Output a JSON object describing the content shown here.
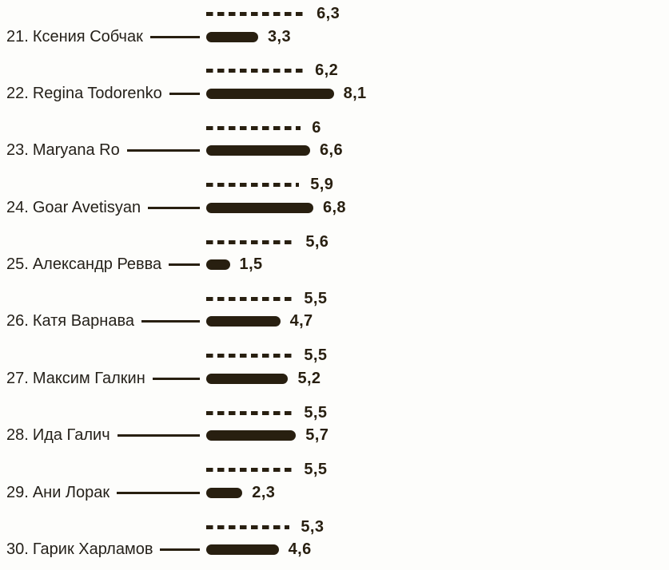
{
  "colors": {
    "ink": "#281f10",
    "name_text": "#25211a",
    "background": "#fdfdfb"
  },
  "chart_data": {
    "type": "bar",
    "orientation": "horizontal",
    "title": "",
    "xlabel": "",
    "ylabel": "",
    "xlim": [
      0,
      8.5
    ],
    "grid": false,
    "legend": "none",
    "decimal_separator": ",",
    "series": [
      {
        "name": "dashed-reference-value",
        "style": "dashed-line"
      },
      {
        "name": "solid-bar-value",
        "style": "solid-rounded-bar"
      }
    ],
    "rows": [
      {
        "rank_label": "21.",
        "name": "Ксения Собчак",
        "dashed_value": 6.3,
        "dashed_label": "6,3",
        "solid_value": 3.3,
        "solid_label": "3,3"
      },
      {
        "rank_label": "22.",
        "name": "Regina Todorenko",
        "dashed_value": 6.2,
        "dashed_label": "6,2",
        "solid_value": 8.1,
        "solid_label": "8,1"
      },
      {
        "rank_label": "23.",
        "name": "Maryana Ro",
        "dashed_value": 6.0,
        "dashed_label": "6",
        "solid_value": 6.6,
        "solid_label": "6,6"
      },
      {
        "rank_label": "24.",
        "name": "Goar Avetisyan",
        "dashed_value": 5.9,
        "dashed_label": "5,9",
        "solid_value": 6.8,
        "solid_label": "6,8"
      },
      {
        "rank_label": "25.",
        "name": "Александр Ревва",
        "dashed_value": 5.6,
        "dashed_label": "5,6",
        "solid_value": 1.5,
        "solid_label": "1,5"
      },
      {
        "rank_label": "26.",
        "name": "Катя Варнава",
        "dashed_value": 5.5,
        "dashed_label": "5,5",
        "solid_value": 4.7,
        "solid_label": "4,7"
      },
      {
        "rank_label": "27.",
        "name": "Максим Галкин",
        "dashed_value": 5.5,
        "dashed_label": "5,5",
        "solid_value": 5.2,
        "solid_label": "5,2"
      },
      {
        "rank_label": "28.",
        "name": "Ида Галич",
        "dashed_value": 5.5,
        "dashed_label": "5,5",
        "solid_value": 5.7,
        "solid_label": "5,7"
      },
      {
        "rank_label": "29.",
        "name": "Ани Лорак",
        "dashed_value": 5.5,
        "dashed_label": "5,5",
        "solid_value": 2.3,
        "solid_label": "2,3"
      },
      {
        "rank_label": "30.",
        "name": "Гарик Харламов",
        "dashed_value": 5.3,
        "dashed_label": "5,3",
        "solid_value": 4.6,
        "solid_label": "4,6"
      }
    ]
  }
}
